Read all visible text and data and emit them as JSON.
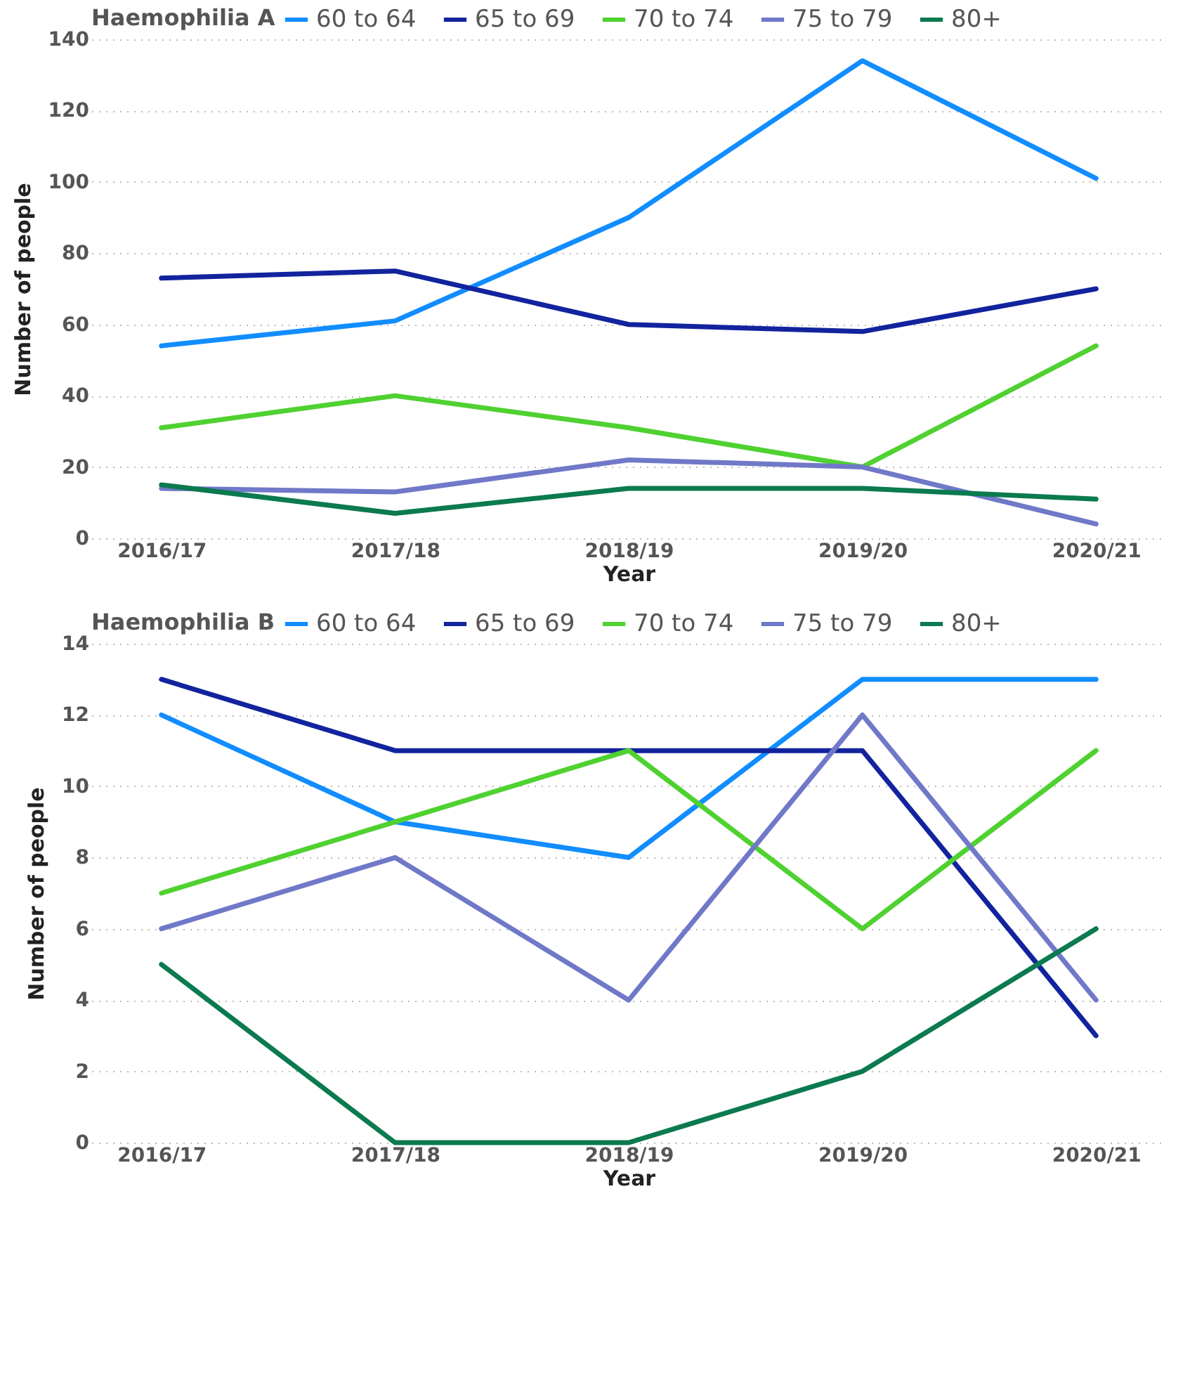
{
  "chart_data": [
    {
      "type": "line",
      "legend_title": "Haemophilia A",
      "xlabel": "Year",
      "ylabel": "Number of people",
      "categories": [
        "2016/17",
        "2017/18",
        "2018/19",
        "2019/20",
        "2020/21"
      ],
      "ylim": [
        0,
        140
      ],
      "yticks": [
        0,
        20,
        40,
        60,
        80,
        100,
        120,
        140
      ],
      "grid": "y",
      "legend": "top left",
      "line_style": "solid",
      "series": [
        {
          "name": "60 to 64",
          "color": "#118dff",
          "values": [
            54,
            61,
            90,
            134,
            101
          ]
        },
        {
          "name": "65 to 69",
          "color": "#12239e",
          "values": [
            73,
            75,
            60,
            58,
            70
          ]
        },
        {
          "name": "70 to 74",
          "color": "#4fd130",
          "values": [
            31,
            40,
            31,
            20,
            54
          ]
        },
        {
          "name": "75 to 79",
          "color": "#7078c8",
          "values": [
            14,
            13,
            22,
            20,
            4
          ]
        },
        {
          "name": "80+",
          "color": "#0b7a4f",
          "values": [
            15,
            7,
            14,
            14,
            11
          ]
        }
      ]
    },
    {
      "type": "line",
      "legend_title": "Haemophilia B",
      "xlabel": "Year",
      "ylabel": "Number of people",
      "categories": [
        "2016/17",
        "2017/18",
        "2018/19",
        "2019/20",
        "2020/21"
      ],
      "ylim": [
        0,
        14
      ],
      "yticks": [
        0,
        2,
        4,
        6,
        8,
        10,
        12,
        14
      ],
      "grid": "y",
      "legend": "top left",
      "line_style": "solid",
      "series": [
        {
          "name": "60 to 64",
          "color": "#118dff",
          "values": [
            12,
            9,
            8,
            13,
            13
          ]
        },
        {
          "name": "65 to 69",
          "color": "#12239e",
          "values": [
            13,
            11,
            11,
            11,
            3
          ]
        },
        {
          "name": "70 to 74",
          "color": "#4fd130",
          "values": [
            7,
            9,
            11,
            6,
            11
          ]
        },
        {
          "name": "75 to 79",
          "color": "#7078c8",
          "values": [
            6,
            8,
            4,
            12,
            4
          ]
        },
        {
          "name": "80+",
          "color": "#0b7a4f",
          "values": [
            5,
            0,
            0,
            2,
            6
          ]
        }
      ]
    }
  ]
}
